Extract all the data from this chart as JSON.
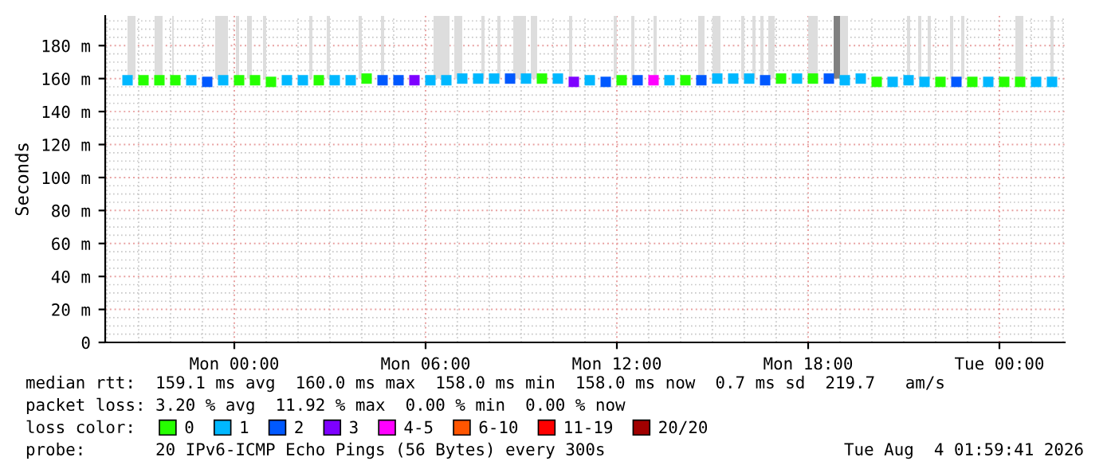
{
  "chart_data": {
    "type": "scatter",
    "marker": "square",
    "ylabel": "Seconds",
    "x": [
      "2026-08-02T20:39",
      "2026-08-02T21:09",
      "2026-08-02T21:39",
      "2026-08-02T22:09",
      "2026-08-02T22:39",
      "2026-08-02T23:09",
      "2026-08-02T23:39",
      "2026-08-03T00:09",
      "2026-08-03T00:39",
      "2026-08-03T01:09",
      "2026-08-03T01:39",
      "2026-08-03T02:09",
      "2026-08-03T02:39",
      "2026-08-03T03:09",
      "2026-08-03T03:39",
      "2026-08-03T04:09",
      "2026-08-03T04:39",
      "2026-08-03T05:09",
      "2026-08-03T05:39",
      "2026-08-03T06:09",
      "2026-08-03T06:39",
      "2026-08-03T07:09",
      "2026-08-03T07:39",
      "2026-08-03T08:09",
      "2026-08-03T08:39",
      "2026-08-03T09:09",
      "2026-08-03T09:39",
      "2026-08-03T10:09",
      "2026-08-03T10:39",
      "2026-08-03T11:09",
      "2026-08-03T11:39",
      "2026-08-03T12:09",
      "2026-08-03T12:39",
      "2026-08-03T13:09",
      "2026-08-03T13:39",
      "2026-08-03T14:09",
      "2026-08-03T14:39",
      "2026-08-03T15:09",
      "2026-08-03T15:39",
      "2026-08-03T16:09",
      "2026-08-03T16:39",
      "2026-08-03T17:09",
      "2026-08-03T17:39",
      "2026-08-03T18:09",
      "2026-08-03T18:39",
      "2026-08-03T19:09",
      "2026-08-03T19:39",
      "2026-08-03T20:09",
      "2026-08-03T20:39",
      "2026-08-03T21:09",
      "2026-08-03T21:39",
      "2026-08-03T22:09",
      "2026-08-03T22:39",
      "2026-08-03T23:09",
      "2026-08-03T23:39",
      "2026-08-04T00:09",
      "2026-08-04T00:39",
      "2026-08-04T01:09",
      "2026-08-04T01:39"
    ],
    "series": [
      {
        "name": "0",
        "color": "#26ff00",
        "values": [
          null,
          159,
          159,
          159,
          null,
          null,
          null,
          159,
          159,
          158,
          null,
          null,
          159,
          null,
          null,
          160,
          null,
          null,
          null,
          null,
          null,
          null,
          null,
          null,
          null,
          null,
          160,
          null,
          null,
          null,
          null,
          159,
          null,
          null,
          null,
          159,
          null,
          null,
          null,
          null,
          null,
          160,
          null,
          160,
          null,
          null,
          null,
          158,
          null,
          null,
          null,
          158,
          null,
          158,
          null,
          158,
          158,
          null,
          null
        ]
      },
      {
        "name": "1",
        "color": "#00b8ff",
        "values": [
          159,
          null,
          null,
          null,
          159,
          null,
          159,
          null,
          null,
          null,
          159,
          159,
          null,
          159,
          159,
          null,
          null,
          null,
          null,
          159,
          159,
          160,
          160,
          160,
          null,
          160,
          null,
          160,
          null,
          159,
          null,
          null,
          null,
          null,
          159,
          null,
          null,
          160,
          160,
          160,
          null,
          null,
          160,
          null,
          null,
          159,
          160,
          null,
          158,
          159,
          158,
          null,
          null,
          null,
          158,
          null,
          null,
          158,
          158
        ]
      },
      {
        "name": "2",
        "color": "#0059ff",
        "values": [
          null,
          null,
          null,
          null,
          null,
          158,
          null,
          null,
          null,
          null,
          null,
          null,
          null,
          null,
          null,
          null,
          159,
          159,
          null,
          null,
          null,
          null,
          null,
          null,
          160,
          null,
          null,
          null,
          null,
          null,
          158,
          null,
          159,
          null,
          null,
          null,
          159,
          null,
          null,
          null,
          159,
          null,
          null,
          null,
          160,
          null,
          null,
          null,
          null,
          null,
          null,
          null,
          158,
          null,
          null,
          null,
          null,
          null,
          null
        ]
      },
      {
        "name": "3",
        "color": "#7e00ff",
        "values": [
          null,
          null,
          null,
          null,
          null,
          null,
          null,
          null,
          null,
          null,
          null,
          null,
          null,
          null,
          null,
          null,
          null,
          null,
          159,
          null,
          null,
          null,
          null,
          null,
          null,
          null,
          null,
          null,
          158,
          null,
          null,
          null,
          null,
          null,
          null,
          null,
          null,
          null,
          null,
          null,
          null,
          null,
          null,
          null,
          null,
          null,
          null,
          null,
          null,
          null,
          null,
          null,
          null,
          null,
          null,
          null,
          null,
          null,
          null
        ]
      },
      {
        "name": "4-5",
        "color": "#ff00ff",
        "values": [
          null,
          null,
          null,
          null,
          null,
          null,
          null,
          null,
          null,
          null,
          null,
          null,
          null,
          null,
          null,
          null,
          null,
          null,
          null,
          null,
          null,
          null,
          null,
          null,
          null,
          null,
          null,
          null,
          null,
          null,
          null,
          null,
          null,
          159,
          null,
          null,
          null,
          null,
          null,
          null,
          null,
          null,
          null,
          null,
          null,
          null,
          null,
          null,
          null,
          null,
          null,
          null,
          null,
          null,
          null,
          null,
          null,
          null,
          null
        ]
      },
      {
        "name": "6-10",
        "color": "#ff5500",
        "values": [
          null,
          null,
          null,
          null,
          null,
          null,
          null,
          null,
          null,
          null,
          null,
          null,
          null,
          null,
          null,
          null,
          null,
          null,
          null,
          null,
          null,
          null,
          null,
          null,
          null,
          null,
          null,
          null,
          null,
          null,
          null,
          null,
          null,
          null,
          null,
          null,
          null,
          null,
          null,
          null,
          null,
          null,
          null,
          null,
          null,
          null,
          null,
          null,
          null,
          null,
          null,
          null,
          null,
          null,
          null,
          null,
          null,
          null,
          null
        ]
      },
      {
        "name": "11-19",
        "color": "#ff0000",
        "values": [
          null,
          null,
          null,
          null,
          null,
          null,
          null,
          null,
          null,
          null,
          null,
          null,
          null,
          null,
          null,
          null,
          null,
          null,
          null,
          null,
          null,
          null,
          null,
          null,
          null,
          null,
          null,
          null,
          null,
          null,
          null,
          null,
          null,
          null,
          null,
          null,
          null,
          null,
          null,
          null,
          null,
          null,
          null,
          null,
          null,
          null,
          null,
          null,
          null,
          null,
          null,
          null,
          null,
          null,
          null,
          null,
          null,
          null,
          null
        ]
      },
      {
        "name": "20/20",
        "color": "#a10000",
        "values": [
          null,
          null,
          null,
          null,
          null,
          null,
          null,
          null,
          null,
          null,
          null,
          null,
          null,
          null,
          null,
          null,
          null,
          null,
          null,
          null,
          null,
          null,
          null,
          null,
          null,
          null,
          null,
          null,
          null,
          null,
          null,
          null,
          null,
          null,
          null,
          null,
          null,
          null,
          null,
          null,
          null,
          null,
          null,
          null,
          null,
          null,
          null,
          null,
          null,
          null,
          null,
          null,
          null,
          null,
          null,
          null,
          null,
          null,
          null
        ]
      }
    ],
    "bands": [
      {
        "axis": "x",
        "from": "2026-08-02T20:39",
        "to": "2026-08-02T20:54",
        "color": "#dddddd"
      },
      {
        "axis": "x",
        "from": "2026-08-02T21:30",
        "to": "2026-08-02T21:45",
        "color": "#dddddd"
      },
      {
        "axis": "x",
        "from": "2026-08-02T22:03",
        "to": "2026-08-02T22:06",
        "color": "#dddddd"
      },
      {
        "axis": "x",
        "from": "2026-08-02T23:24",
        "to": "2026-08-02T23:48",
        "color": "#dddddd"
      },
      {
        "axis": "x",
        "from": "2026-08-03T00:03",
        "to": "2026-08-03T00:09",
        "color": "#dddddd"
      },
      {
        "axis": "x",
        "from": "2026-08-03T00:24",
        "to": "2026-08-03T00:33",
        "color": "#dddddd"
      },
      {
        "axis": "x",
        "from": "2026-08-03T00:54",
        "to": "2026-08-03T01:00",
        "color": "#dddddd"
      },
      {
        "axis": "x",
        "from": "2026-08-03T02:21",
        "to": "2026-08-03T02:27",
        "color": "#dddddd"
      },
      {
        "axis": "x",
        "from": "2026-08-03T02:54",
        "to": "2026-08-03T03:00",
        "color": "#dddddd"
      },
      {
        "axis": "x",
        "from": "2026-08-03T03:54",
        "to": "2026-08-03T04:00",
        "color": "#dddddd"
      },
      {
        "axis": "x",
        "from": "2026-08-03T04:36",
        "to": "2026-08-03T04:42",
        "color": "#dddddd"
      },
      {
        "axis": "x",
        "from": "2026-08-03T06:15",
        "to": "2026-08-03T06:45",
        "color": "#dddddd"
      },
      {
        "axis": "x",
        "from": "2026-08-03T06:54",
        "to": "2026-08-03T07:09",
        "color": "#dddddd"
      },
      {
        "axis": "x",
        "from": "2026-08-03T07:45",
        "to": "2026-08-03T07:51",
        "color": "#dddddd"
      },
      {
        "axis": "x",
        "from": "2026-08-03T08:15",
        "to": "2026-08-03T08:21",
        "color": "#dddddd"
      },
      {
        "axis": "x",
        "from": "2026-08-03T08:45",
        "to": "2026-08-03T09:09",
        "color": "#dddddd"
      },
      {
        "axis": "x",
        "from": "2026-08-03T09:18",
        "to": "2026-08-03T09:30",
        "color": "#dddddd"
      },
      {
        "axis": "x",
        "from": "2026-08-03T10:30",
        "to": "2026-08-03T10:36",
        "color": "#dddddd"
      },
      {
        "axis": "x",
        "from": "2026-08-03T11:54",
        "to": "2026-08-03T12:00",
        "color": "#dddddd"
      },
      {
        "axis": "x",
        "from": "2026-08-03T12:27",
        "to": "2026-08-03T12:33",
        "color": "#dddddd"
      },
      {
        "axis": "x",
        "from": "2026-08-03T13:09",
        "to": "2026-08-03T13:15",
        "color": "#dddddd"
      },
      {
        "axis": "x",
        "from": "2026-08-03T14:33",
        "to": "2026-08-03T14:45",
        "color": "#dddddd"
      },
      {
        "axis": "x",
        "from": "2026-08-03T15:00",
        "to": "2026-08-03T15:15",
        "color": "#dddddd"
      },
      {
        "axis": "x",
        "from": "2026-08-03T15:54",
        "to": "2026-08-03T16:00",
        "color": "#dddddd"
      },
      {
        "axis": "x",
        "from": "2026-08-03T16:15",
        "to": "2026-08-03T16:21",
        "color": "#dddddd"
      },
      {
        "axis": "x",
        "from": "2026-08-03T16:30",
        "to": "2026-08-03T16:36",
        "color": "#dddddd"
      },
      {
        "axis": "x",
        "from": "2026-08-03T16:45",
        "to": "2026-08-03T16:57",
        "color": "#dddddd"
      },
      {
        "axis": "x",
        "from": "2026-08-03T18:00",
        "to": "2026-08-03T18:18",
        "color": "#dddddd"
      },
      {
        "axis": "x",
        "from": "2026-08-03T18:48",
        "to": "2026-08-03T19:00",
        "color": "#808080"
      },
      {
        "axis": "x",
        "from": "2026-08-03T19:00",
        "to": "2026-08-03T19:15",
        "color": "#dddddd"
      },
      {
        "axis": "x",
        "from": "2026-08-03T21:06",
        "to": "2026-08-03T21:12",
        "color": "#dddddd"
      },
      {
        "axis": "x",
        "from": "2026-08-03T21:27",
        "to": "2026-08-03T21:33",
        "color": "#dddddd"
      },
      {
        "axis": "x",
        "from": "2026-08-03T21:45",
        "to": "2026-08-03T21:51",
        "color": "#dddddd"
      },
      {
        "axis": "x",
        "from": "2026-08-03T22:27",
        "to": "2026-08-03T22:33",
        "color": "#dddddd"
      },
      {
        "axis": "x",
        "from": "2026-08-03T22:48",
        "to": "2026-08-03T22:54",
        "color": "#dddddd"
      },
      {
        "axis": "x",
        "from": "2026-08-04T00:30",
        "to": "2026-08-04T00:45",
        "color": "#dddddd"
      },
      {
        "axis": "x",
        "from": "2026-08-04T01:36",
        "to": "2026-08-04T01:42",
        "color": "#dddddd"
      }
    ],
    "xlim": [
      "2026-08-02T19:57",
      "2026-08-04T02:03"
    ],
    "xticks": [
      {
        "value": "2026-08-03T00:00",
        "label": "Mon 00:00"
      },
      {
        "value": "2026-08-03T06:00",
        "label": "Mon 06:00"
      },
      {
        "value": "2026-08-03T12:00",
        "label": "Mon 12:00"
      },
      {
        "value": "2026-08-03T18:00",
        "label": "Mon 18:00"
      },
      {
        "value": "2026-08-04T00:00",
        "label": "Tue 00:00"
      }
    ],
    "ylim": [
      0,
      198
    ],
    "yticks": [
      0,
      {
        "value": 20,
        "label": "20 m"
      },
      {
        "value": 40,
        "label": "40 m"
      },
      {
        "value": 60,
        "label": "60 m"
      },
      {
        "value": 80,
        "label": "80 m"
      },
      {
        "value": 100,
        "label": "100 m"
      },
      {
        "value": 120,
        "label": "120 m"
      },
      {
        "value": 140,
        "label": "140 m"
      },
      {
        "value": 160,
        "label": "160 m"
      },
      {
        "value": 180,
        "label": "180 m"
      }
    ],
    "grid": true,
    "legend": "bottom",
    "legend_title": "loss color:",
    "annotations": [
      "median rtt:  159.1 ms avg  160.0 ms max  158.0 ms min  158.0 ms now  0.7 ms sd  219.7   am/s",
      "packet loss: 3.20 % avg  11.92 % max  0.00 % min  0.00 % now",
      "probe:       20 IPv6-ICMP Echo Pings (56 Bytes) every 300s",
      "Tue Aug  4 01:59:41 2026"
    ]
  }
}
